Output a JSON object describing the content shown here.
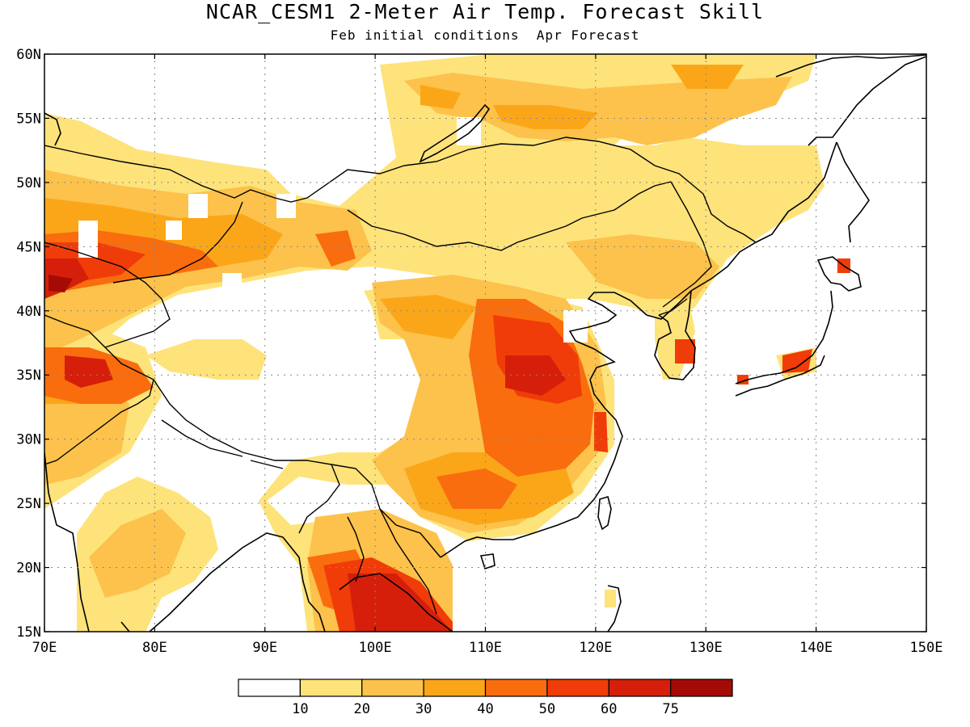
{
  "title": "NCAR_CESM1 2-Meter Air Temp. Forecast Skill",
  "subtitle": "Feb initial conditions  Apr Forecast",
  "colors": {
    "c0": "#ffffff",
    "c1": "#fde37a",
    "c2": "#fcc24b",
    "c3": "#fba619",
    "c4": "#f96d0e",
    "c5": "#f03c08",
    "c6": "#d51f0b",
    "c7": "#a50b06"
  },
  "map": {
    "lat_labels": [
      "15N",
      "20N",
      "25N",
      "30N",
      "35N",
      "40N",
      "45N",
      "50N",
      "55N",
      "60N"
    ],
    "lon_labels": [
      "70E",
      "80E",
      "90E",
      "100E",
      "110E",
      "120E",
      "130E",
      "140E",
      "150E"
    ]
  },
  "legend": {
    "labels": [
      "10",
      "20",
      "30",
      "40",
      "50",
      "60",
      "75"
    ]
  }
}
